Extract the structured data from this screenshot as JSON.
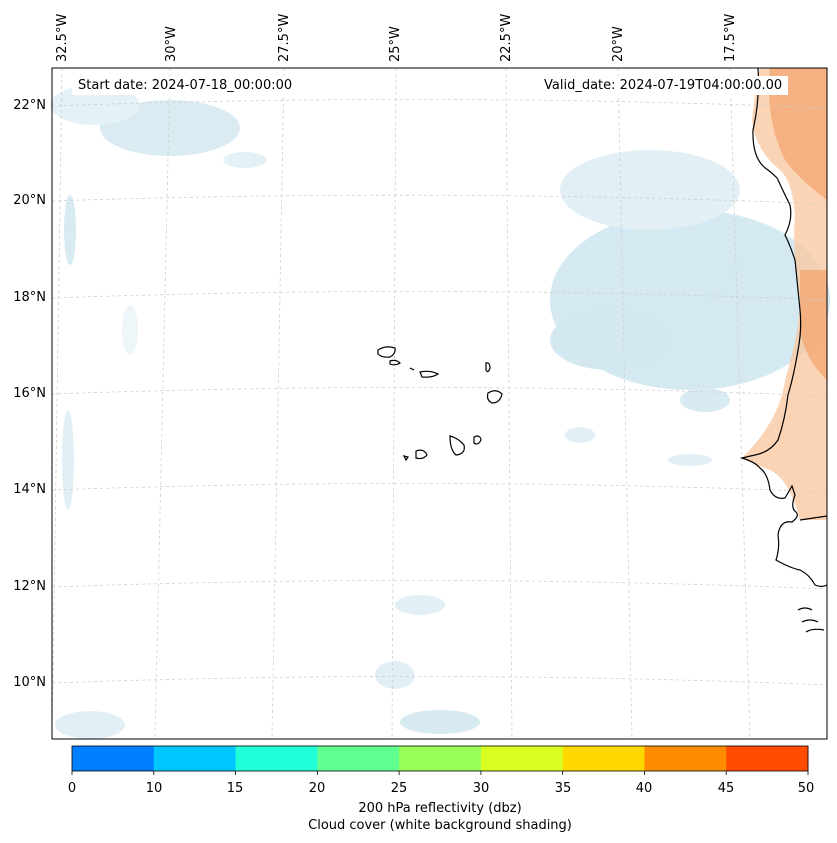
{
  "header": {
    "start_date": "Start date: 2024-07-18_00:00:00",
    "valid_date": "Valid_date: 2024-07-19T04:00:00.00"
  },
  "axes": {
    "longitude_labels": [
      "32.5°W",
      "30°W",
      "27.5°W",
      "25°W",
      "22.5°W",
      "20°W",
      "17.5°W"
    ],
    "latitude_labels": [
      "22°N",
      "20°N",
      "18°N",
      "16°N",
      "14°N",
      "12°N",
      "10°N"
    ]
  },
  "colorbar": {
    "ticks": [
      "0",
      "10",
      "15",
      "20",
      "25",
      "30",
      "35",
      "40",
      "45",
      "50"
    ],
    "colors": [
      "#0080ff",
      "#00c8ff",
      "#20ffd8",
      "#60ff90",
      "#98ff58",
      "#d8ff20",
      "#ffd800",
      "#ff8c00",
      "#ff4c00"
    ],
    "label_line1": "200 hPa reflectivity (dbz)",
    "label_line2": "Cloud cover (white background shading)"
  },
  "colors": {
    "cloud": "#cfe7ef",
    "reflectivity_warm": "#f6b07c",
    "coast": "#000000",
    "grid": "#c8c8c8"
  }
}
